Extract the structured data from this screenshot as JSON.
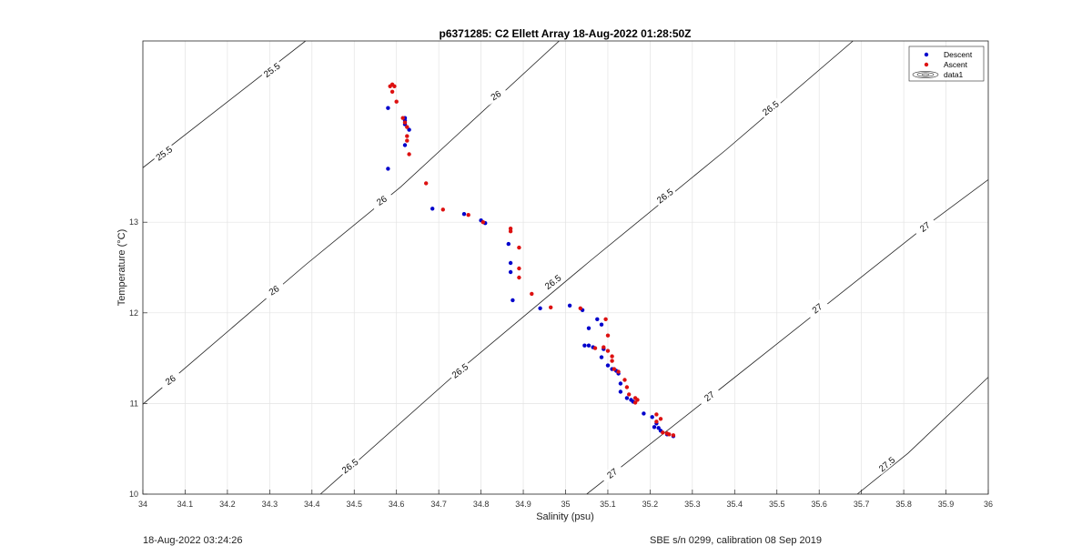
{
  "chart_data": {
    "type": "scatter",
    "title": "p6371285: C2 Ellett Array 18-Aug-2022 01:28:50Z",
    "xlabel": "Salinity (psu)",
    "ylabel": "Temperature (°C)",
    "xlim": [
      34,
      36
    ],
    "ylim": [
      10,
      15.0
    ],
    "x_ticks": [
      34,
      34.1,
      34.2,
      34.3,
      34.4,
      34.5,
      34.6,
      34.7,
      34.8,
      34.9,
      35,
      35.1,
      35.2,
      35.3,
      35.4,
      35.5,
      35.6,
      35.7,
      35.8,
      35.9,
      36
    ],
    "x_tick_labels": [
      "34",
      "34.1",
      "34.2",
      "34.3",
      "34.4",
      "34.5",
      "34.6",
      "34.7",
      "34.8",
      "34.9",
      "35",
      "35.1",
      "35.2",
      "35.3",
      "35.4",
      "35.5",
      "35.6",
      "35.7",
      "35.8",
      "35.9",
      "36"
    ],
    "y_ticks": [
      10,
      11,
      12,
      13
    ],
    "y_tick_labels": [
      "10",
      "11",
      "12",
      "13"
    ],
    "grid": true,
    "legend_position": "top-right",
    "legend": [
      "Descent",
      "Ascent",
      "data1"
    ],
    "series": [
      {
        "name": "Descent",
        "color": "#0000cc",
        "points": [
          [
            34.58,
            14.26
          ],
          [
            34.58,
            13.59
          ],
          [
            34.62,
            14.15
          ],
          [
            34.62,
            14.12
          ],
          [
            34.62,
            14.08
          ],
          [
            34.63,
            14.02
          ],
          [
            34.62,
            13.85
          ],
          [
            34.685,
            13.15
          ],
          [
            34.76,
            13.09
          ],
          [
            34.8,
            13.02
          ],
          [
            34.81,
            12.99
          ],
          [
            34.865,
            12.76
          ],
          [
            34.87,
            12.55
          ],
          [
            34.87,
            12.45
          ],
          [
            34.875,
            12.14
          ],
          [
            34.94,
            12.05
          ],
          [
            35.01,
            12.08
          ],
          [
            35.04,
            12.03
          ],
          [
            35.045,
            11.64
          ],
          [
            35.055,
            11.64
          ],
          [
            35.065,
            11.62
          ],
          [
            35.075,
            11.93
          ],
          [
            35.085,
            11.87
          ],
          [
            35.055,
            11.83
          ],
          [
            35.09,
            11.6
          ],
          [
            35.085,
            11.51
          ],
          [
            35.1,
            11.42
          ],
          [
            35.11,
            11.38
          ],
          [
            35.12,
            11.36
          ],
          [
            35.125,
            11.33
          ],
          [
            35.13,
            11.22
          ],
          [
            35.13,
            11.13
          ],
          [
            35.145,
            11.06
          ],
          [
            35.155,
            11.04
          ],
          [
            35.16,
            11.02
          ],
          [
            35.185,
            10.89
          ],
          [
            35.205,
            10.85
          ],
          [
            35.215,
            10.78
          ],
          [
            35.21,
            10.74
          ],
          [
            35.22,
            10.73
          ],
          [
            35.225,
            10.7
          ],
          [
            35.24,
            10.66
          ],
          [
            35.255,
            10.64
          ]
        ]
      },
      {
        "name": "Ascent",
        "color": "#dd1111",
        "points": [
          [
            34.585,
            14.5
          ],
          [
            34.59,
            14.52
          ],
          [
            34.595,
            14.5
          ],
          [
            34.59,
            14.44
          ],
          [
            34.6,
            14.33
          ],
          [
            34.615,
            14.15
          ],
          [
            34.62,
            14.1
          ],
          [
            34.625,
            14.05
          ],
          [
            34.625,
            13.95
          ],
          [
            34.625,
            13.9
          ],
          [
            34.63,
            13.75
          ],
          [
            34.67,
            13.43
          ],
          [
            34.71,
            13.14
          ],
          [
            34.77,
            13.08
          ],
          [
            34.805,
            13.0
          ],
          [
            34.87,
            12.93
          ],
          [
            34.87,
            12.9
          ],
          [
            34.89,
            12.72
          ],
          [
            34.89,
            12.49
          ],
          [
            34.89,
            12.39
          ],
          [
            34.92,
            12.21
          ],
          [
            34.965,
            12.06
          ],
          [
            35.035,
            12.05
          ],
          [
            35.095,
            11.93
          ],
          [
            35.1,
            11.75
          ],
          [
            35.07,
            11.61
          ],
          [
            35.09,
            11.62
          ],
          [
            35.1,
            11.58
          ],
          [
            35.11,
            11.52
          ],
          [
            35.11,
            11.47
          ],
          [
            35.115,
            11.38
          ],
          [
            35.125,
            11.35
          ],
          [
            35.14,
            11.26
          ],
          [
            35.145,
            11.18
          ],
          [
            35.15,
            11.1
          ],
          [
            35.165,
            11.06
          ],
          [
            35.17,
            11.04
          ],
          [
            35.165,
            11.01
          ],
          [
            35.215,
            10.88
          ],
          [
            35.225,
            10.83
          ],
          [
            35.215,
            10.8
          ],
          [
            35.23,
            10.68
          ],
          [
            35.24,
            10.67
          ],
          [
            35.245,
            10.66
          ],
          [
            35.255,
            10.65
          ]
        ]
      }
    ],
    "isopycnals": [
      {
        "sigma": "25.5",
        "label": "25.5"
      },
      {
        "sigma": "26",
        "label": "26"
      },
      {
        "sigma": "26.5",
        "label": "26.5"
      },
      {
        "sigma": "27",
        "label": "27"
      },
      {
        "sigma": "27.5",
        "label": "27.5"
      }
    ]
  },
  "footer": {
    "timestamp": "18-Aug-2022 03:24:26",
    "instrument": "SBE s/n 0299, calibration 08 Sep 2019"
  }
}
